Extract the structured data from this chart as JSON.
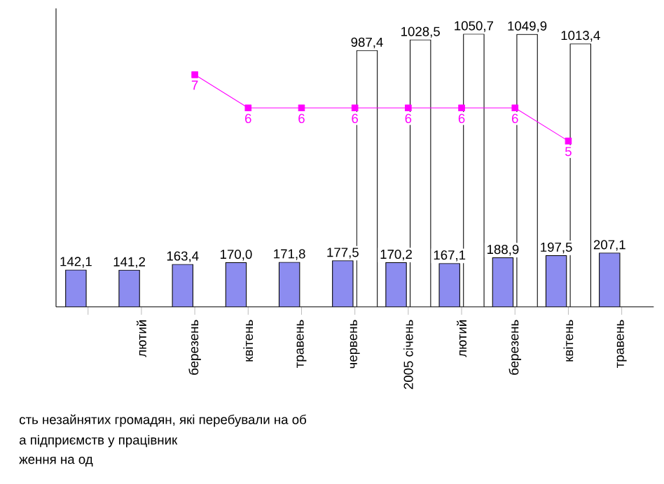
{
  "chart_data": {
    "type": "bar",
    "categories": [
      null,
      "лютий",
      "березень",
      "квітень",
      "травень",
      "червень",
      "2005 січень",
      "лютий",
      "березень",
      "квітень",
      "травень"
    ],
    "series": [
      {
        "color": "#8c8cf0",
        "values": [
          142.1,
          141.2,
          163.4,
          170.0,
          171.8,
          177.5,
          170.2,
          167.1,
          188.9,
          197.5,
          207.1
        ],
        "value_labels": [
          "142,1",
          "141,2",
          "163,4",
          "170,0",
          "171,8",
          "177,5",
          "170,2",
          "167,1",
          "188,9",
          "197,5",
          "207,1"
        ]
      },
      {
        "color": "#ffffff",
        "values": [
          null,
          null,
          null,
          null,
          null,
          987.4,
          1028.5,
          1050.7,
          1049.9,
          1013.4,
          null
        ],
        "value_labels": [
          null,
          null,
          null,
          null,
          null,
          "987,4",
          "1028,5",
          "1050,7",
          "1049,9",
          "1013,4",
          null
        ]
      },
      {
        "type": "line",
        "axis": "y2",
        "color": "#ff00ff",
        "marker": "square",
        "values": [
          null,
          null,
          7,
          6,
          6,
          6,
          6,
          6,
          6,
          5,
          null
        ],
        "value_labels": [
          null,
          null,
          "7",
          "6",
          "6",
          "6",
          "6",
          "6",
          "6",
          "5",
          null
        ]
      }
    ],
    "ylim": [
      0,
      1150
    ],
    "y2lim": [
      0,
      9
    ],
    "tick_labels": "x",
    "annotations": [
      "сть незайнятих громадян, які перебували на об",
      "а підприємств у працівник",
      "ження на од"
    ]
  }
}
